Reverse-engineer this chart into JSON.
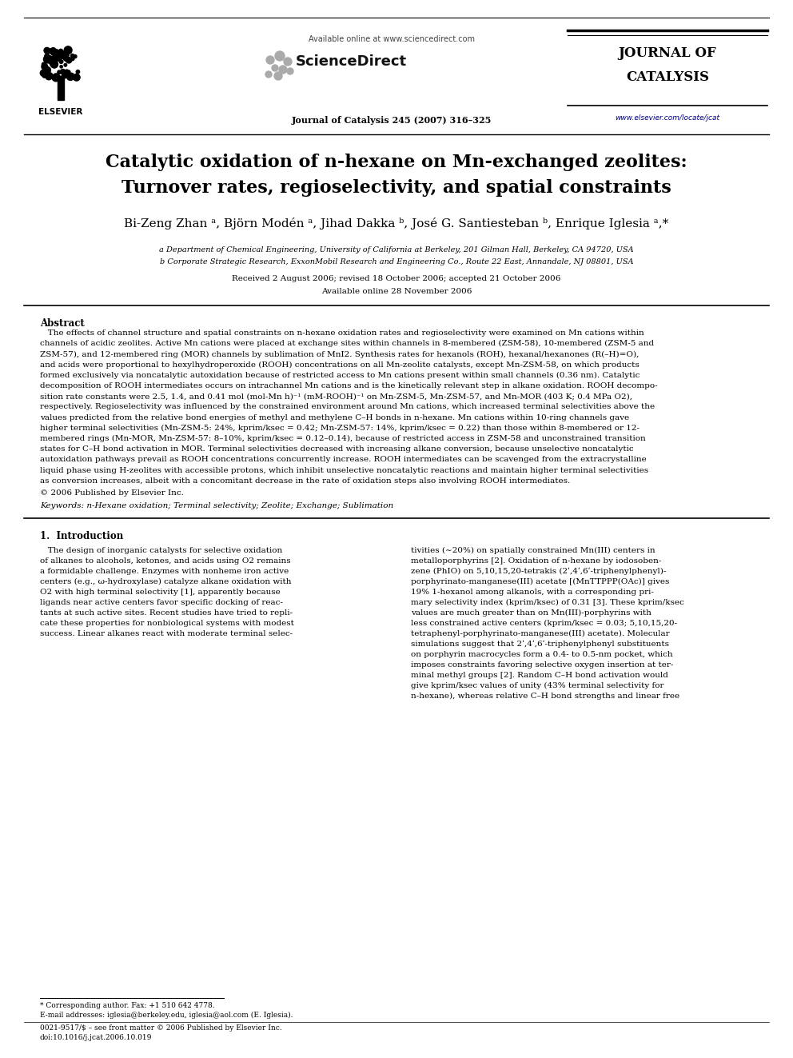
{
  "bg_color": "#ffffff",
  "page_width": 9.92,
  "page_height": 13.23,
  "dpi": 100,
  "header_available_online": "Available online at www.sciencedirect.com",
  "journal_name_line1": "JOURNAL OF",
  "journal_name_line2": "CATALYSIS",
  "journal_citation": "Journal of Catalysis 245 (2007) 316–325",
  "journal_url": "www.elsevier.com/locate/jcat",
  "title_line1": "Catalytic oxidation of n-hexane on Mn-exchanged zeolites:",
  "title_line2": "Turnover rates, regioselectivity, and spatial constraints",
  "authors_text": "Bi-Zeng Zhan a, Björn Modén a, Jihad Dakka b, José G. Santiesteban b, Enrique Iglesia a,*",
  "affil_a": "a Department of Chemical Engineering, University of California at Berkeley, 201 Gilman Hall, Berkeley, CA 94720, USA",
  "affil_b": "b Corporate Strategic Research, ExxonMobil Research and Engineering Co., Route 22 East, Annandale, NJ 08801, USA",
  "received": "Received 2 August 2006; revised 18 October 2006; accepted 21 October 2006",
  "available_online_date": "Available online 28 November 2006",
  "abstract_title": "Abstract",
  "abstract_lines": [
    "   The effects of channel structure and spatial constraints on n-hexane oxidation rates and regioselectivity were examined on Mn cations within",
    "channels of acidic zeolites. Active Mn cations were placed at exchange sites within channels in 8-membered (ZSM-58), 10-membered (ZSM-5 and",
    "ZSM-57), and 12-membered ring (MOR) channels by sublimation of MnI2. Synthesis rates for hexanols (ROH), hexanal/hexanones (R(–H)=O),",
    "and acids were proportional to hexylhydroperoxide (ROOH) concentrations on all Mn-zeolite catalysts, except Mn-ZSM-58, on which products",
    "formed exclusively via noncatalytic autoxidation because of restricted access to Mn cations present within small channels (0.36 nm). Catalytic",
    "decomposition of ROOH intermediates occurs on intrachannel Mn cations and is the kinetically relevant step in alkane oxidation. ROOH decompo-",
    "sition rate constants were 2.5, 1.4, and 0.41 mol (mol-Mn h)⁻¹ (mM-ROOH)⁻¹ on Mn-ZSM-5, Mn-ZSM-57, and Mn-MOR (403 K; 0.4 MPa O2),",
    "respectively. Regioselectivity was influenced by the constrained environment around Mn cations, which increased terminal selectivities above the",
    "values predicted from the relative bond energies of methyl and methylene C–H bonds in n-hexane. Mn cations within 10-ring channels gave",
    "higher terminal selectivities (Mn-ZSM-5: 24%, kprim/ksec = 0.42; Mn-ZSM-57: 14%, kprim/ksec = 0.22) than those within 8-membered or 12-",
    "membered rings (Mn-MOR, Mn-ZSM-57: 8–10%, kprim/ksec = 0.12–0.14), because of restricted access in ZSM-58 and unconstrained transition",
    "states for C–H bond activation in MOR. Terminal selectivities decreased with increasing alkane conversion, because unselective noncatalytic",
    "autoxidation pathways prevail as ROOH concentrations concurrently increase. ROOH intermediates can be scavenged from the extracrystalline",
    "liquid phase using H-zeolites with accessible protons, which inhibit unselective noncatalytic reactions and maintain higher terminal selectivities",
    "as conversion increases, albeit with a concomitant decrease in the rate of oxidation steps also involving ROOH intermediates."
  ],
  "copyright_text": "© 2006 Published by Elsevier Inc.",
  "keywords_text": "Keywords: n-Hexane oxidation; Terminal selectivity; Zeolite; Exchange; Sublimation",
  "section1_title": "1.  Introduction",
  "col1_lines": [
    "   The design of inorganic catalysts for selective oxidation",
    "of alkanes to alcohols, ketones, and acids using O2 remains",
    "a formidable challenge. Enzymes with nonheme iron active",
    "centers (e.g., ω-hydroxylase) catalyze alkane oxidation with",
    "O2 with high terminal selectivity [1], apparently because",
    "ligands near active centers favor specific docking of reac-",
    "tants at such active sites. Recent studies have tried to repli-",
    "cate these properties for nonbiological systems with modest",
    "success. Linear alkanes react with moderate terminal selec-"
  ],
  "col2_lines": [
    "tivities (∼20%) on spatially constrained Mn(III) centers in",
    "metalloporphyrins [2]. Oxidation of n-hexane by iodosoben-",
    "zene (PhIO) on 5,10,15,20-tetrakis (2ʹ,4ʹ,6ʹ-triphenylphenyl)-",
    "porphyrinato-manganese(III) acetate [(MnTTPPP(OAc)] gives",
    "19% 1-hexanol among alkanols, with a corresponding pri-",
    "mary selectivity index (kprim/ksec) of 0.31 [3]. These kprim/ksec",
    "values are much greater than on Mn(III)-porphyrins with",
    "less constrained active centers (kprim/ksec = 0.03; 5,10,15,20-",
    "tetraphenyl-porphyrinato-manganese(III) acetate). Molecular",
    "simulations suggest that 2ʹ,4ʹ,6ʹ-triphenylphenyl substituents",
    "on porphyrin macrocycles form a 0.4- to 0.5-nm pocket, which",
    "imposes constraints favoring selective oxygen insertion at ter-",
    "minal methyl groups [2]. Random C–H bond activation would",
    "give kprim/ksec values of unity (43% terminal selectivity for",
    "n-hexane), whereas relative C–H bond strengths and linear free"
  ],
  "footnote_star": "* Corresponding author. Fax: +1 510 642 4778.",
  "footnote_email": "E-mail addresses: iglesia@berkeley.edu, iglesia@aol.com (E. Iglesia).",
  "footnote_issn": "0021-9517/$ – see front matter © 2006 Published by Elsevier Inc.",
  "footnote_doi": "doi:10.1016/j.jcat.2006.10.019",
  "line_color": "#000000",
  "text_color": "#000000",
  "url_color": "#000080"
}
